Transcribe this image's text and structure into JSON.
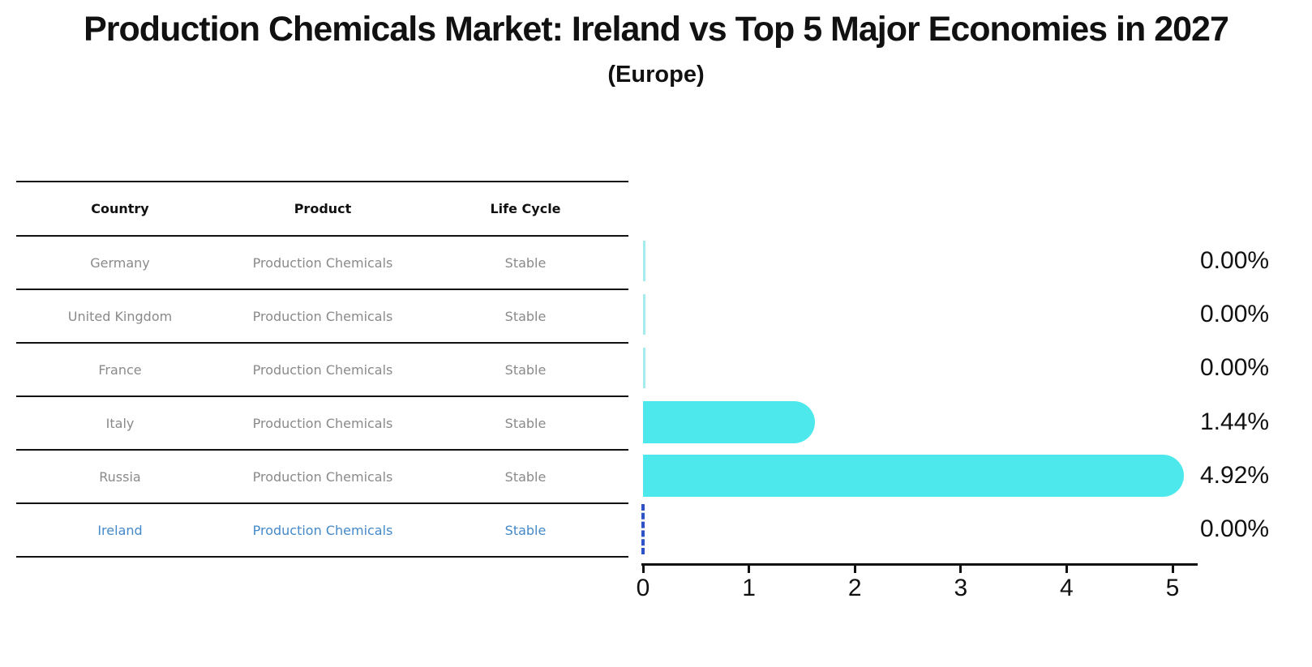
{
  "title": "Production Chemicals Market: Ireland vs Top 5 Major Economies in 2027",
  "subtitle": "(Europe)",
  "table": {
    "headers": [
      "Country",
      "Product",
      "Life Cycle"
    ],
    "rows": [
      {
        "country": "Germany",
        "product": "Production Chemicals",
        "life_cycle": "Stable",
        "highlighted": false
      },
      {
        "country": "United Kingdom",
        "product": "Production Chemicals",
        "life_cycle": "Stable",
        "highlighted": false
      },
      {
        "country": "France",
        "product": "Production Chemicals",
        "life_cycle": "Stable",
        "highlighted": false
      },
      {
        "country": "Italy",
        "product": "Production Chemicals",
        "life_cycle": "Stable",
        "highlighted": false
      },
      {
        "country": "Russia",
        "product": "Production Chemicals",
        "life_cycle": "Stable",
        "highlighted": false
      },
      {
        "country": "Ireland",
        "product": "Production Chemicals",
        "life_cycle": "Stable",
        "highlighted": true
      }
    ]
  },
  "chart_data": {
    "type": "bar",
    "orientation": "horizontal",
    "categories": [
      "Germany",
      "United Kingdom",
      "France",
      "Italy",
      "Russia",
      "Ireland"
    ],
    "values": [
      0.0,
      0.0,
      0.0,
      1.44,
      4.92,
      0.0
    ],
    "value_labels": [
      "0.00%",
      "0.00%",
      "0.00%",
      "1.44%",
      "4.92%",
      "0.00%"
    ],
    "x_ticks": [
      "0",
      "1",
      "2",
      "3",
      "4",
      "5"
    ],
    "xlim": [
      0,
      5.25
    ],
    "grid": false,
    "legend": false,
    "highlight_index": 5,
    "highlight_style": "dashed-zero-marker"
  },
  "colors": {
    "bar": "#4de8ec",
    "zero_bar": "#a5ebee",
    "highlight_marker": "#2e52c8",
    "highlight_text": "#4489c9",
    "table_text": "#8a8a8a",
    "ink": "#111111"
  }
}
